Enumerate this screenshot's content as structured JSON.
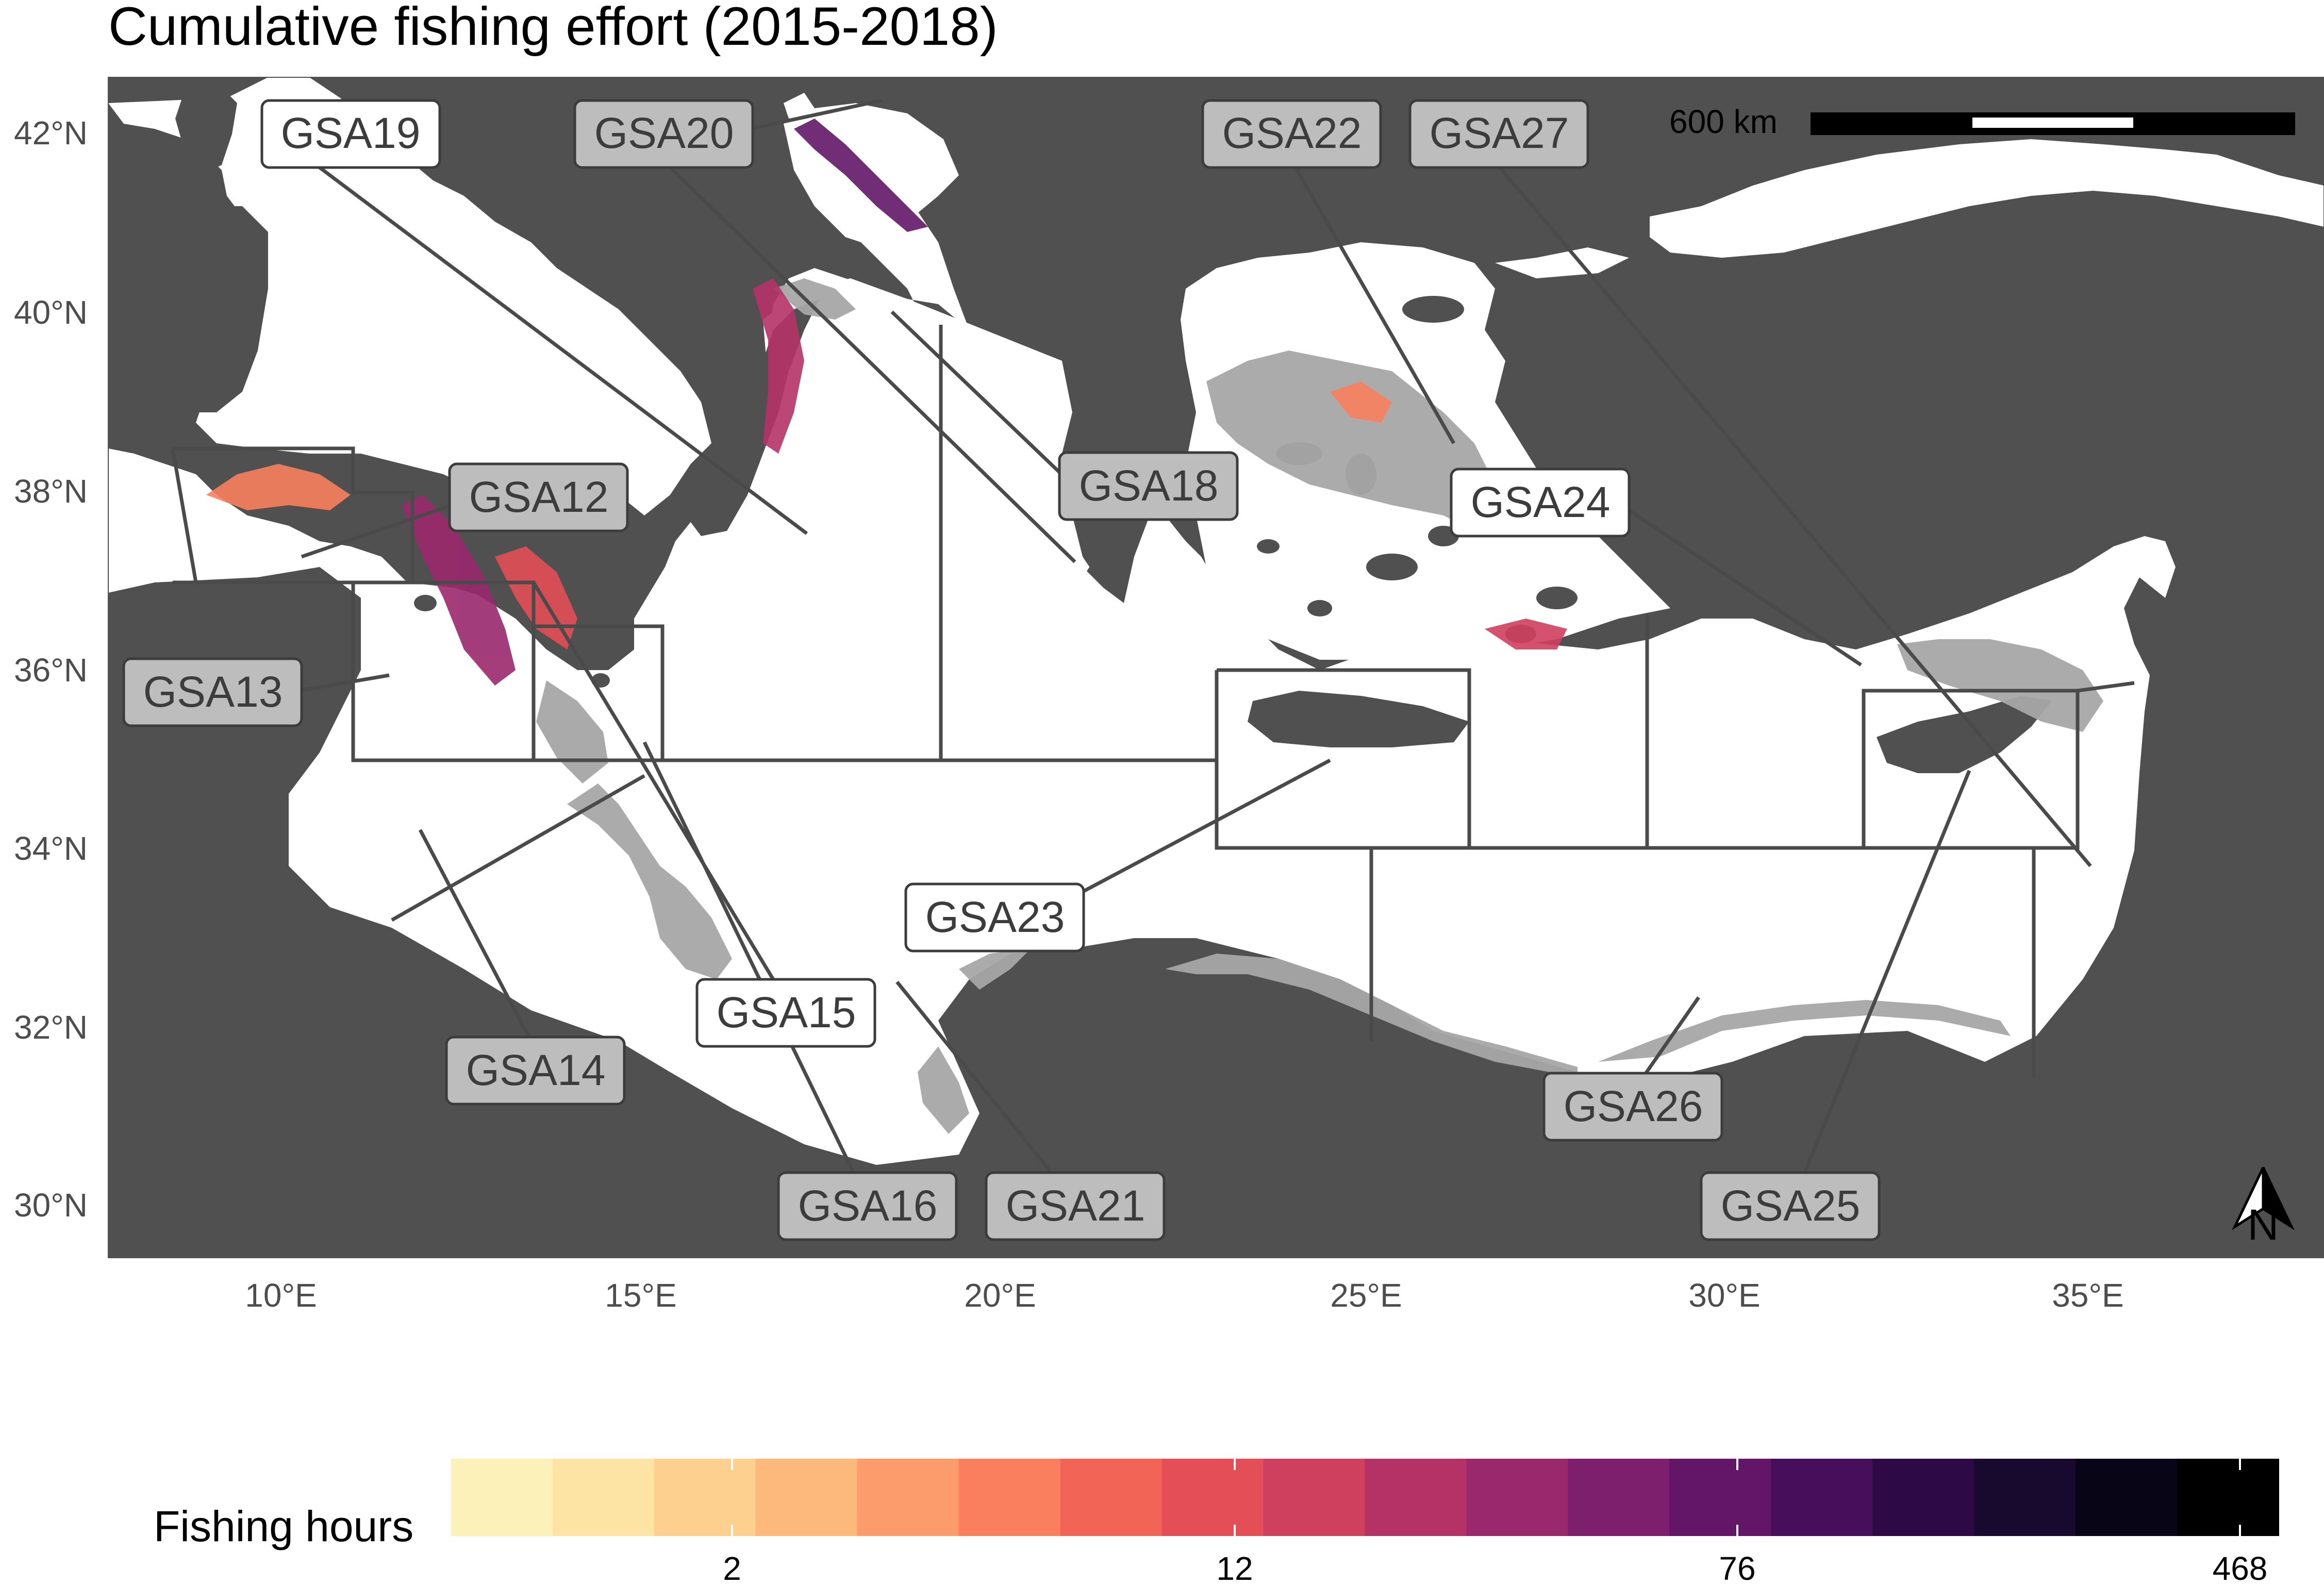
{
  "title": "Cumulative fishing effort (2015-2018)",
  "scale_bar": {
    "label": "600 km"
  },
  "north_arrow": {
    "label": "N"
  },
  "lat_labels": [
    "42°N",
    "40°N",
    "38°N",
    "36°N",
    "34°N",
    "32°N",
    "30°N"
  ],
  "lon_labels": [
    "10°E",
    "15°E",
    "20°E",
    "25°E",
    "30°E",
    "35°E"
  ],
  "gsa_labels": [
    {
      "name": "GSA19",
      "style": "outline"
    },
    {
      "name": "GSA20",
      "style": "filled"
    },
    {
      "name": "GSA22",
      "style": "filled"
    },
    {
      "name": "GSA27",
      "style": "filled"
    },
    {
      "name": "GSA12",
      "style": "filled"
    },
    {
      "name": "GSA18",
      "style": "filled"
    },
    {
      "name": "GSA24",
      "style": "outline"
    },
    {
      "name": "GSA13",
      "style": "filled"
    },
    {
      "name": "GSA23",
      "style": "outline"
    },
    {
      "name": "GSA15",
      "style": "outline"
    },
    {
      "name": "GSA14",
      "style": "filled"
    },
    {
      "name": "GSA26",
      "style": "filled"
    },
    {
      "name": "GSA16",
      "style": "filled"
    },
    {
      "name": "GSA21",
      "style": "filled"
    },
    {
      "name": "GSA25",
      "style": "filled"
    }
  ],
  "legend": {
    "title": "Fishing hours",
    "ticks": [
      "2",
      "12",
      "76",
      "468"
    ],
    "colors": [
      "#fcf2b9",
      "#fde3a4",
      "#fdd08f",
      "#fdb87c",
      "#fc9c6c",
      "#f97f5e",
      "#f16456",
      "#e34e57",
      "#cf3f5e",
      "#b53266",
      "#9a286c",
      "#7e1f6e",
      "#631668",
      "#470e5c",
      "#2d0a45",
      "#180a2e",
      "#080616",
      "#000000"
    ]
  },
  "colors": {
    "land": "#505050",
    "sea": "#ffffff",
    "shelf": "#a6a6a6",
    "boundary": "#4a4a4a",
    "label_fill": "#bdbdbd",
    "label_outline_fill": "#ffffff"
  }
}
